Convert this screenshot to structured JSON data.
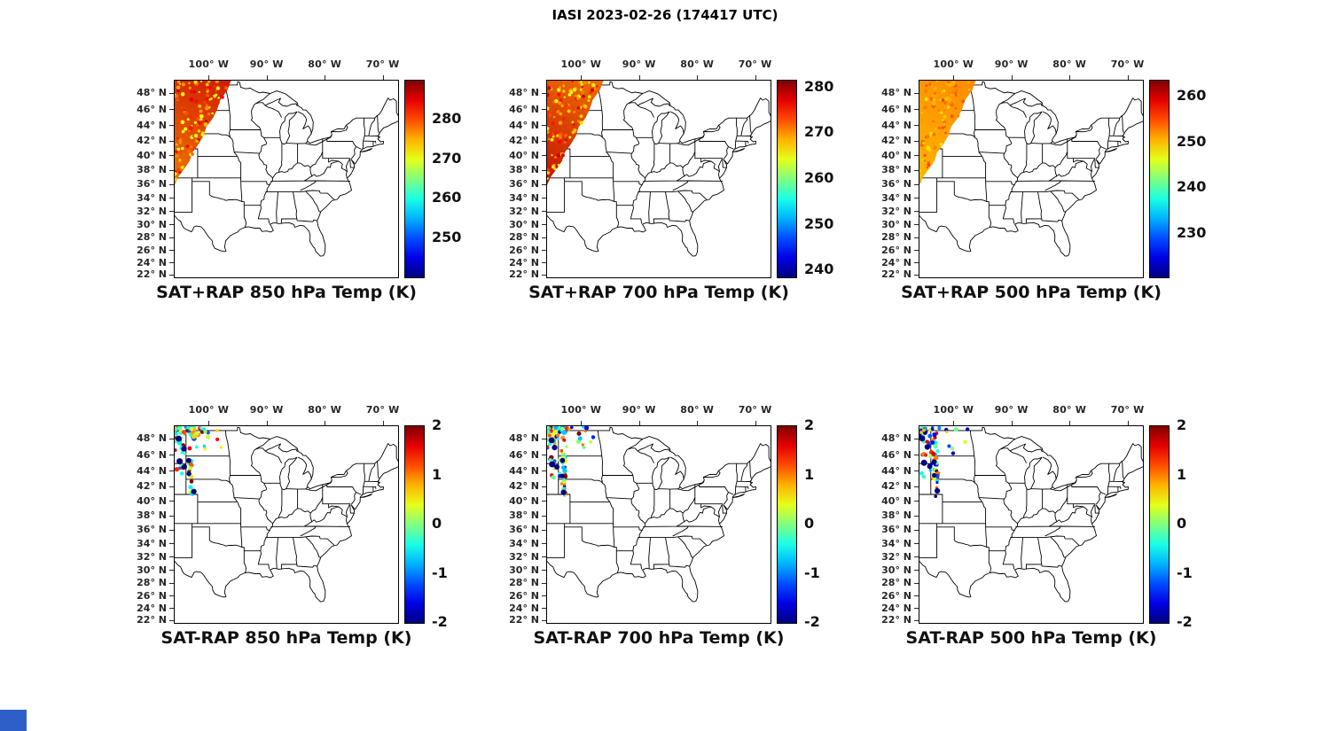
{
  "figure": {
    "title": "IASI 2023-02-26 (174417 UTC)",
    "background_color": "#ffffff",
    "corner_mark_color": "#2e5fc8"
  },
  "axes": {
    "projection": "mercator",
    "lon_range_deg_w": [
      106,
      67.5
    ],
    "lat_range_deg_n": [
      21.7,
      49.5
    ],
    "lon_ticks": [
      {
        "label": "100° W",
        "lon": -100
      },
      {
        "label": "90° W",
        "lon": -90
      },
      {
        "label": "80° W",
        "lon": -80
      },
      {
        "label": "70° W",
        "lon": -70
      }
    ],
    "lat_ticks": [
      {
        "label": "48° N",
        "lat": 48
      },
      {
        "label": "46° N",
        "lat": 46
      },
      {
        "label": "44° N",
        "lat": 44
      },
      {
        "label": "42° N",
        "lat": 42
      },
      {
        "label": "40° N",
        "lat": 40
      },
      {
        "label": "38° N",
        "lat": 38
      },
      {
        "label": "36° N",
        "lat": 36
      },
      {
        "label": "34° N",
        "lat": 34
      },
      {
        "label": "32° N",
        "lat": 32
      },
      {
        "label": "30° N",
        "lat": 30
      },
      {
        "label": "28° N",
        "lat": 28
      },
      {
        "label": "26° N",
        "lat": 26
      },
      {
        "label": "24° N",
        "lat": 24
      },
      {
        "label": "22° N",
        "lat": 22
      }
    ]
  },
  "colormap": {
    "name": "jet",
    "low_color": "#000080",
    "high_color": "#800000"
  },
  "panels": [
    {
      "title": "SAT+RAP 850 hPa Temp (K)",
      "colorbar": {
        "range": [
          240,
          290
        ],
        "tick_values": [
          280,
          270,
          260,
          250
        ],
        "labels": [
          "280",
          "270",
          "260",
          "250"
        ]
      },
      "overlay": {
        "type": "swath",
        "seed": 11,
        "gradient": [
          "#f07800",
          "#cf1c00"
        ],
        "speckle_t": [
          0.58,
          0.93
        ],
        "speckle_count": 110
      }
    },
    {
      "title": "SAT+RAP 700 hPa Temp (K)",
      "colorbar": {
        "range": [
          238.5,
          281.5
        ],
        "tick_values": [
          280,
          270,
          260,
          250,
          240
        ],
        "labels": [
          "280",
          "270",
          "260",
          "250",
          "240"
        ]
      },
      "overlay": {
        "type": "swath",
        "seed": 22,
        "gradient": [
          "#c41000",
          "#ee7000"
        ],
        "speckle_t": [
          0.6,
          0.95
        ],
        "speckle_count": 110
      }
    },
    {
      "title": "SAT+RAP 500 hPa Temp (K)",
      "colorbar": {
        "range": [
          220.5,
          263.5
        ],
        "tick_values": [
          260,
          250,
          240,
          230
        ],
        "labels": [
          "260",
          "250",
          "240",
          "230"
        ]
      },
      "overlay": {
        "type": "swath",
        "seed": 33,
        "gradient": [
          "#ffb800",
          "#ff8a00"
        ],
        "speckle_t": [
          0.64,
          0.82
        ],
        "speckle_count": 90
      }
    },
    {
      "title": "SAT-RAP 850 hPa Temp (K)",
      "colorbar": {
        "range": [
          -2,
          2
        ],
        "tick_values": [
          2,
          1,
          0,
          -1,
          -2
        ],
        "labels": [
          "2",
          "1",
          "0",
          "-1",
          "-2"
        ]
      },
      "overlay": {
        "type": "dots",
        "seed": 101,
        "bias": 0.25,
        "count": 95
      }
    },
    {
      "title": "SAT-RAP 700 hPa Temp (K)",
      "colorbar": {
        "range": [
          -2,
          2
        ],
        "tick_values": [
          2,
          1,
          0,
          -1,
          -2
        ],
        "labels": [
          "2",
          "1",
          "0",
          "-1",
          "-2"
        ]
      },
      "overlay": {
        "type": "dots",
        "seed": 202,
        "bias": 0.05,
        "count": 95
      }
    },
    {
      "title": "SAT-RAP 500 hPa Temp (K)",
      "colorbar": {
        "range": [
          -2,
          2
        ],
        "tick_values": [
          2,
          1,
          0,
          -1,
          -2
        ],
        "labels": [
          "2",
          "1",
          "0",
          "-1",
          "-2"
        ]
      },
      "overlay": {
        "type": "dots",
        "seed": 303,
        "bias": -0.35,
        "count": 80
      }
    }
  ],
  "chart_data": [
    {
      "type": "map",
      "subtype": "satellite-swath",
      "title": "SAT+RAP 850 hPa Temp (K)",
      "projection": "mercator",
      "lon_ticks_deg_w": [
        100,
        90,
        80,
        70
      ],
      "lat_ticks_deg_n": [
        48,
        46,
        44,
        42,
        40,
        38,
        36,
        34,
        32,
        30,
        28,
        26,
        24,
        22
      ],
      "colormap": "jet",
      "colorbar_ticks": [
        250,
        260,
        270,
        280
      ],
      "colorbar_range_est": [
        240,
        290
      ],
      "units": "K",
      "coverage": "Triangular IASI swath over the northern Great Plains, approx (106W,49.5N)-(96.5W,49.5N)-(106W,36N)",
      "approx_value_range": [
        272,
        288
      ]
    },
    {
      "type": "map",
      "subtype": "satellite-swath",
      "title": "SAT+RAP 700 hPa Temp (K)",
      "projection": "mercator",
      "lon_ticks_deg_w": [
        100,
        90,
        80,
        70
      ],
      "lat_ticks_deg_n": [
        48,
        46,
        44,
        42,
        40,
        38,
        36,
        34,
        32,
        30,
        28,
        26,
        24,
        22
      ],
      "colormap": "jet",
      "colorbar_ticks": [
        240,
        250,
        260,
        270,
        280
      ],
      "colorbar_range_est": [
        238.5,
        281.5
      ],
      "units": "K",
      "coverage": "Same triangular IASI swath over the northern Great Plains",
      "approx_value_range": [
        266,
        280
      ]
    },
    {
      "type": "map",
      "subtype": "satellite-swath",
      "title": "SAT+RAP 500 hPa Temp (K)",
      "projection": "mercator",
      "lon_ticks_deg_w": [
        100,
        90,
        80,
        70
      ],
      "lat_ticks_deg_n": [
        48,
        46,
        44,
        42,
        40,
        38,
        36,
        34,
        32,
        30,
        28,
        26,
        24,
        22
      ],
      "colormap": "jet",
      "colorbar_ticks": [
        230,
        240,
        250,
        260
      ],
      "colorbar_range_est": [
        220.5,
        263.5
      ],
      "units": "K",
      "coverage": "Same triangular IASI swath over the northern Great Plains",
      "approx_value_range": [
        246,
        256
      ]
    },
    {
      "type": "map",
      "subtype": "scatter",
      "title": "SAT-RAP 850 hPa Temp (K)",
      "projection": "mercator",
      "colormap": "jet",
      "colorbar_ticks": [
        -2,
        -1,
        0,
        1,
        2
      ],
      "colorbar_range": [
        -2,
        2
      ],
      "units": "K",
      "coverage": "Scattered SAT minus RAP differences clustered between 106W-96W and 40N-49.5N, with several dark-blue (-2 K) outlier dots",
      "approx_value_range": [
        -2,
        2
      ]
    },
    {
      "type": "map",
      "subtype": "scatter",
      "title": "SAT-RAP 700 hPa Temp (K)",
      "projection": "mercator",
      "colormap": "jet",
      "colorbar_ticks": [
        -2,
        -1,
        0,
        1,
        2
      ],
      "colorbar_range": [
        -2,
        2
      ],
      "units": "K",
      "coverage": "Scattered SAT minus RAP differences clustered between 106W-96W and 40N-49.5N, with several dark-blue (-2 K) outlier dots",
      "approx_value_range": [
        -2,
        2
      ]
    },
    {
      "type": "map",
      "subtype": "scatter",
      "title": "SAT-RAP 500 hPa Temp (K)",
      "projection": "mercator",
      "colormap": "jet",
      "colorbar_ticks": [
        -2,
        -1,
        0,
        1,
        2
      ],
      "colorbar_range": [
        -2,
        2
      ],
      "units": "K",
      "coverage": "Scattered SAT minus RAP differences (mostly cyan/green, slightly cool) clustered between 106W-96W and 40N-49.5N",
      "approx_value_range": [
        -2,
        2
      ]
    }
  ]
}
